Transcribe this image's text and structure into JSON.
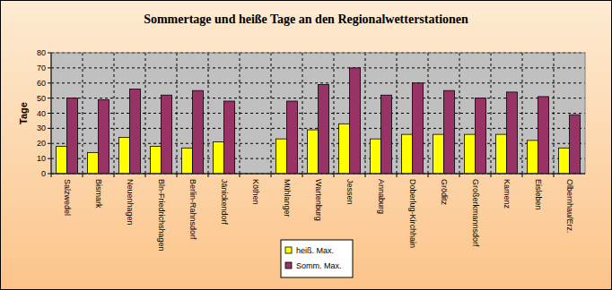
{
  "chart_data": {
    "type": "bar",
    "title": "Sommertage und heiße Tage an den Regionalwetterstationen",
    "y_label": "Tage",
    "categories": [
      "Salzwedel",
      "Bismark",
      "Neuenhagen",
      "Bln-Friedrichshagen",
      "Berlin-Rahnsdorf",
      "Jänickendorf",
      "Köthen",
      "Mühlanger",
      "Wartenburg",
      "Jessen",
      "Annaburg",
      "Doberlug-Kirchhain",
      "Gröditz",
      "Großerkmannsdorf",
      "Kamenz",
      "Eisleben",
      "Olbernhau/Erz."
    ],
    "series": [
      {
        "name": "heiß. Max.",
        "color": "#ffff00",
        "values": [
          18,
          14,
          24,
          18,
          17,
          21,
          null,
          23,
          29,
          33,
          23,
          26,
          26,
          26,
          26,
          22,
          17
        ]
      },
      {
        "name": "Somm. Max.",
        "color": "#993366",
        "values": [
          50,
          49,
          56,
          52,
          55,
          48,
          null,
          48,
          59,
          70,
          52,
          60,
          55,
          50,
          54,
          51,
          39
        ]
      }
    ],
    "ylim": [
      0,
      80
    ],
    "yticks": [
      0,
      10,
      20,
      30,
      40,
      50,
      60,
      70,
      80
    ],
    "grid": true,
    "legend": "bottom"
  }
}
